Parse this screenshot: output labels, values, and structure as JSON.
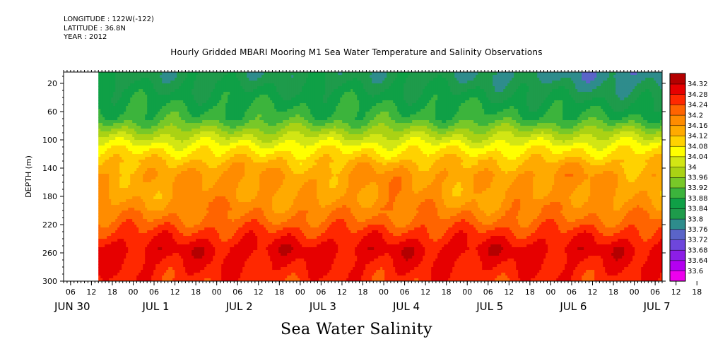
{
  "header": {
    "longitude": "LONGITUDE : 122W(-122)",
    "latitude": "LATITUDE : 36.8N",
    "year": "YEAR : 2012"
  },
  "chart_data": {
    "type": "heatmap",
    "title": "Hourly Gridded MBARI Mooring M1 Sea Water Temperature and Salinity Observations",
    "variable_title": "Sea Water Salinity",
    "ylabel": "DEPTH (m)",
    "ylim": [
      300,
      4
    ],
    "yticks": [
      20,
      60,
      100,
      140,
      180,
      220,
      260,
      300
    ],
    "x_hour_ticks": [
      "06",
      "12",
      "18",
      "00",
      "06",
      "12",
      "18",
      "00",
      "06",
      "12",
      "18",
      "00",
      "06",
      "12",
      "18",
      "00",
      "06",
      "12",
      "18",
      "00",
      "06",
      "12",
      "18",
      "00",
      "06",
      "12",
      "18",
      "00",
      "06",
      "12",
      "18",
      "00",
      "06"
    ],
    "x_day_labels": [
      "JUN 30",
      "JUL 1",
      "JUL 2",
      "JUL 3",
      "JUL 4",
      "JUL 5",
      "JUL 6",
      "JUL 7"
    ],
    "x_start": "2012-06-30 04:00",
    "x_end": "2012-07-07 08:00",
    "data_start": "2012-06-30 14:00",
    "colorbar_levels": [
      33.6,
      33.64,
      33.68,
      33.72,
      33.76,
      33.8,
      33.84,
      33.88,
      33.92,
      33.96,
      34,
      34.04,
      34.08,
      34.12,
      34.16,
      34.2,
      34.24,
      34.28,
      34.32
    ],
    "colorbar_labels": [
      "34.32",
      "34.28",
      "34.24",
      "34.2",
      "34.16",
      "34.12",
      "34.08",
      "34.04",
      "34",
      "33.96",
      "33.92",
      "33.88",
      "33.84",
      "33.8",
      "33.76",
      "33.72",
      "33.68",
      "33.64",
      "33.6"
    ],
    "colorbar_colors": [
      "#ee00ee",
      "#b400f0",
      "#8c1ee6",
      "#6e46dc",
      "#5a64c8",
      "#2e8c8c",
      "#1e9b4b",
      "#0fa046",
      "#3cb43c",
      "#78c828",
      "#aad214",
      "#d2e614",
      "#ffff00",
      "#ffd200",
      "#ffaa00",
      "#ff8c00",
      "#ff6400",
      "#ff2800",
      "#e60000",
      "#b40000"
    ],
    "salinity_profile": [
      {
        "depth": 10,
        "value": 33.82
      },
      {
        "depth": 40,
        "value": 33.86
      },
      {
        "depth": 70,
        "value": 33.9
      },
      {
        "depth": 90,
        "value": 33.98
      },
      {
        "depth": 110,
        "value": 34.06
      },
      {
        "depth": 130,
        "value": 34.12
      },
      {
        "depth": 150,
        "value": 34.16
      },
      {
        "depth": 180,
        "value": 34.16
      },
      {
        "depth": 210,
        "value": 34.2
      },
      {
        "depth": 235,
        "value": 34.26
      },
      {
        "depth": 255,
        "value": 34.3
      },
      {
        "depth": 275,
        "value": 34.28
      },
      {
        "depth": 300,
        "value": 34.26
      }
    ]
  }
}
